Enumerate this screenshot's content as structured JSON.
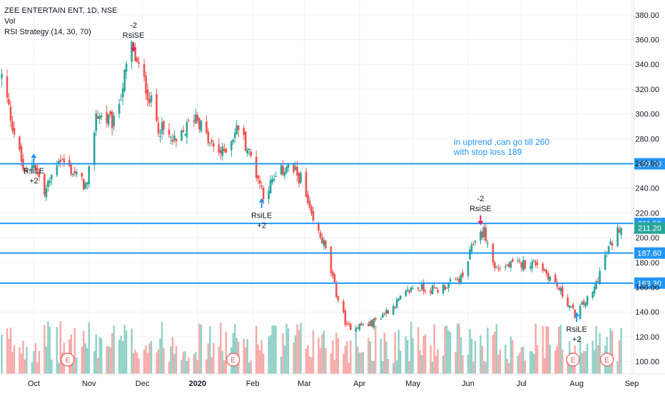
{
  "legend": {
    "symbol": "ZEE ENTERTAIN ENT, 1D, NSE",
    "vol": "Vol",
    "strategy": "RSI Strategy (14, 30, 70)"
  },
  "colors": {
    "up": "#26a69a",
    "down": "#ef5350",
    "hline": "#2196f3",
    "vol_up": "#8fd1c7",
    "vol_down": "#f7a9a7",
    "badge_blue": "#2196f3",
    "badge_gray": "#ffffff",
    "earnings": "#ef5350"
  },
  "chart_data": {
    "type": "candlestick",
    "y_axis": {
      "ticks": [
        100,
        120,
        140,
        160,
        180,
        200,
        220,
        240,
        260,
        280,
        300,
        320,
        340,
        360,
        380
      ],
      "tick_labels": [
        "100.00",
        "120.00",
        "140.00",
        "160.00",
        "180.00",
        "200.00",
        "220.00",
        "240.00",
        "260.00",
        "280.00",
        "300.00",
        "320.00",
        "340.00",
        "360.00",
        "380.00"
      ],
      "range": [
        90,
        392
      ]
    },
    "x_axis": {
      "labels": [
        "Oct",
        "Nov",
        "Dec",
        "2020",
        "Feb",
        "Mar",
        "Apr",
        "May",
        "Jun",
        "Jul",
        "Aug",
        "Sep"
      ]
    },
    "horizontal_lines": [
      {
        "value": 259.7,
        "label": "259.70"
      },
      {
        "value": 211.5,
        "label": "211.50"
      },
      {
        "value": 187.6,
        "label": "187.60"
      },
      {
        "value": 163.3,
        "label": "163.30"
      }
    ],
    "last_price": {
      "value": 211.2,
      "label": "211.20"
    },
    "annotation": {
      "line1": "in uptrend ,can go till 260",
      "line2": "with stop loss 189"
    },
    "signals": [
      {
        "type": "long",
        "label": "RsiLE",
        "qty": "+2",
        "date": "2019-10-01",
        "price": 268
      },
      {
        "type": "short",
        "label": "RsiSE",
        "qty": "-2",
        "date": "2019-11-26",
        "price": 350
      },
      {
        "type": "long",
        "label": "RsiLE",
        "qty": "+2",
        "date": "2020-02-06",
        "price": 232
      },
      {
        "type": "short",
        "label": "RsiSE",
        "qty": "-2",
        "date": "2020-06-08",
        "price": 210
      },
      {
        "type": "long",
        "label": "RsiLE",
        "qty": "+2",
        "date": "2020-08-01",
        "price": 140
      }
    ],
    "earnings_markers": [
      {
        "label": "E",
        "date": "2019-10-20"
      },
      {
        "label": "E",
        "date": "2020-01-21"
      },
      {
        "label": "E",
        "date": "2020-07-30"
      },
      {
        "label": "E",
        "date": "2020-08-18"
      }
    ],
    "price_anchors": [
      {
        "date": "2019-09-13",
        "close": 330
      },
      {
        "date": "2019-09-20",
        "close": 285
      },
      {
        "date": "2019-09-26",
        "close": 250
      },
      {
        "date": "2019-10-01",
        "close": 262
      },
      {
        "date": "2019-10-07",
        "close": 235
      },
      {
        "date": "2019-10-15",
        "close": 265
      },
      {
        "date": "2019-10-25",
        "close": 250
      },
      {
        "date": "2019-10-31",
        "close": 240
      },
      {
        "date": "2019-11-05",
        "close": 300
      },
      {
        "date": "2019-11-15",
        "close": 292
      },
      {
        "date": "2019-11-25",
        "close": 355
      },
      {
        "date": "2019-11-28",
        "close": 340
      },
      {
        "date": "2019-12-03",
        "close": 322
      },
      {
        "date": "2019-12-10",
        "close": 290
      },
      {
        "date": "2019-12-20",
        "close": 275
      },
      {
        "date": "2019-12-31",
        "close": 300
      },
      {
        "date": "2020-01-08",
        "close": 275
      },
      {
        "date": "2020-01-15",
        "close": 268
      },
      {
        "date": "2020-01-24",
        "close": 290
      },
      {
        "date": "2020-01-31",
        "close": 265
      },
      {
        "date": "2020-02-07",
        "close": 236
      },
      {
        "date": "2020-02-20",
        "close": 258
      },
      {
        "date": "2020-02-28",
        "close": 248
      },
      {
        "date": "2020-03-05",
        "close": 215
      },
      {
        "date": "2020-03-12",
        "close": 195
      },
      {
        "date": "2020-03-19",
        "close": 155
      },
      {
        "date": "2020-03-25",
        "close": 128
      },
      {
        "date": "2020-04-07",
        "close": 130
      },
      {
        "date": "2020-04-20",
        "close": 145
      },
      {
        "date": "2020-05-01",
        "close": 160
      },
      {
        "date": "2020-05-15",
        "close": 158
      },
      {
        "date": "2020-05-29",
        "close": 168
      },
      {
        "date": "2020-06-05",
        "close": 200
      },
      {
        "date": "2020-06-10",
        "close": 205
      },
      {
        "date": "2020-06-16",
        "close": 175
      },
      {
        "date": "2020-06-26",
        "close": 178
      },
      {
        "date": "2020-07-10",
        "close": 180
      },
      {
        "date": "2020-07-20",
        "close": 163
      },
      {
        "date": "2020-07-31",
        "close": 138
      },
      {
        "date": "2020-08-10",
        "close": 155
      },
      {
        "date": "2020-08-17",
        "close": 185
      },
      {
        "date": "2020-08-26",
        "close": 211.2
      }
    ],
    "x_range": [
      "2019-09-12",
      "2020-09-02"
    ]
  }
}
